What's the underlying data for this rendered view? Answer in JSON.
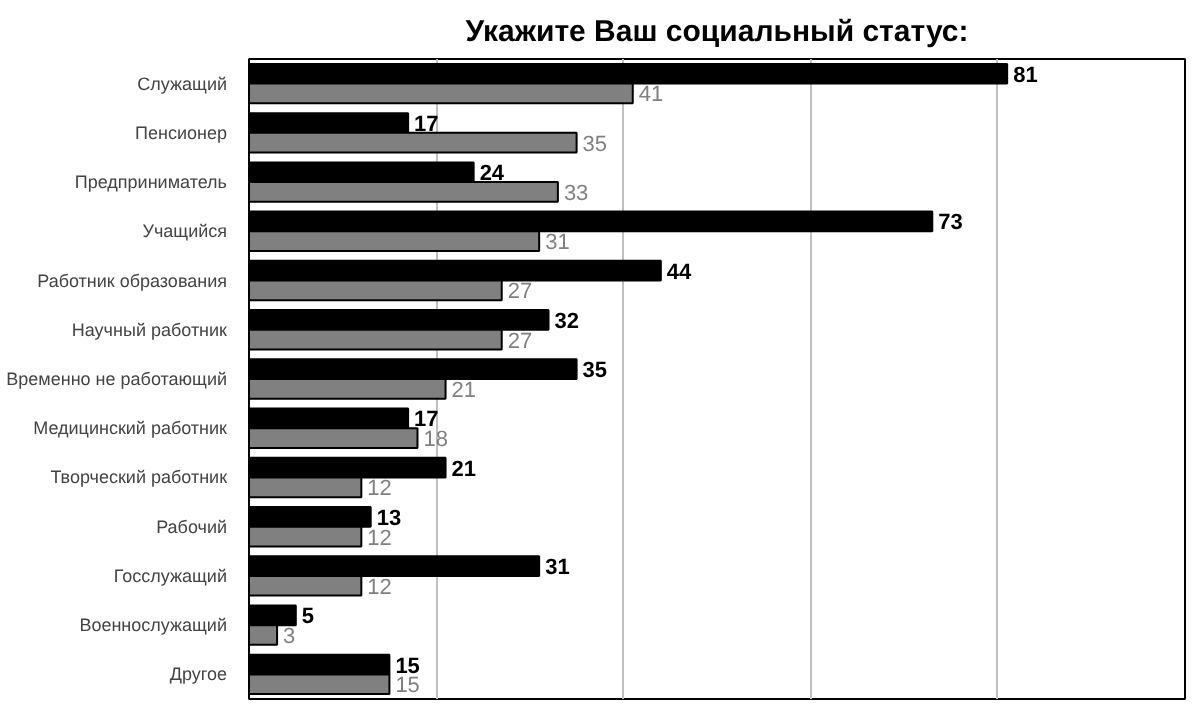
{
  "chart_data": {
    "type": "bar",
    "orientation": "horizontal",
    "title": "Укажите Ваш социальный статус:",
    "categories": [
      "Служащий",
      "Пенсионер",
      "Предприниматель",
      "Учащийся",
      "Работник образования",
      "Научный работник",
      "Временно не работающий",
      "Медицинский работник",
      "Творческий работник",
      "Рабочий",
      "Госслужащий",
      "Военнослужащий",
      "Другое"
    ],
    "series": [
      {
        "color": "#000000",
        "values": [
          81,
          17,
          24,
          73,
          44,
          32,
          35,
          17,
          21,
          13,
          31,
          5,
          15
        ]
      },
      {
        "color": "#808080",
        "values": [
          41,
          35,
          33,
          31,
          27,
          27,
          21,
          18,
          12,
          12,
          12,
          3,
          15
        ]
      }
    ],
    "xlim": [
      0,
      100
    ],
    "xticks": [
      {
        "value": 0,
        "label": null
      },
      {
        "value": 20,
        "label": null
      },
      {
        "value": 40,
        "label": null
      },
      {
        "value": 60,
        "label": null
      },
      {
        "value": 80,
        "label": null
      },
      {
        "value": 100,
        "label": null
      }
    ],
    "grid": "x",
    "data_labels": true,
    "tick_labels": "y"
  }
}
